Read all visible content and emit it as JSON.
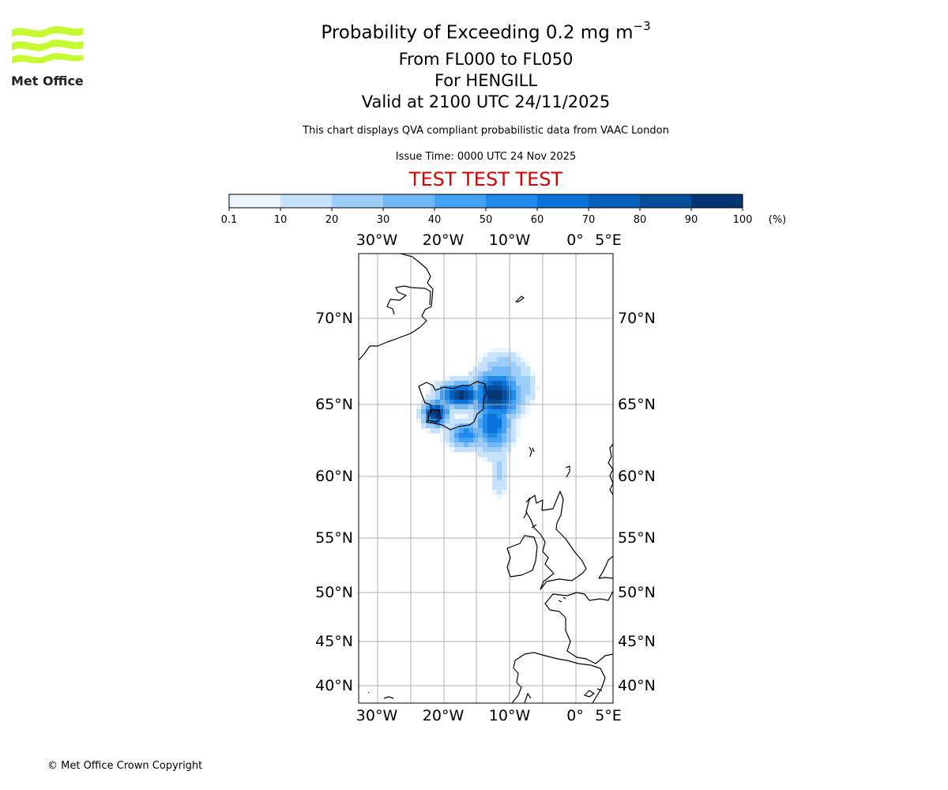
{
  "logo": {
    "text": "Met Office",
    "color": "#c5fa33"
  },
  "header": {
    "title_main": "Probability of Exceeding 0.2 mg m",
    "title_exponent": "−3",
    "levels": "From FL000 to FL050",
    "location": "For HENGILL",
    "valid": "Valid at 2100 UTC 24/11/2025",
    "description": "This chart displays QVA compliant probabilistic data from VAAC London",
    "issue_time": "Issue Time: 0000 UTC 24 Nov 2025",
    "test_banner": "TEST TEST TEST",
    "test_color": "#d40000"
  },
  "colorbar": {
    "ticks": [
      "0.1",
      "10",
      "20",
      "30",
      "40",
      "50",
      "60",
      "70",
      "80",
      "90",
      "100"
    ],
    "unit": "(%)",
    "colors": [
      "#ebf5ff",
      "#c6e2fc",
      "#9fcdf9",
      "#71b8f8",
      "#44a1f4",
      "#1f8aea",
      "#0a72d8",
      "#045fbd",
      "#024c98",
      "#033572"
    ]
  },
  "map": {
    "lon_labels": [
      "30°W",
      "20°W",
      "10°W",
      "0°",
      "5°E"
    ],
    "lat_labels": [
      "70°N",
      "65°N",
      "60°N",
      "55°N",
      "50°N",
      "45°N",
      "40°N"
    ]
  },
  "footer": {
    "copyright": "© Met Office Crown Copyright"
  }
}
